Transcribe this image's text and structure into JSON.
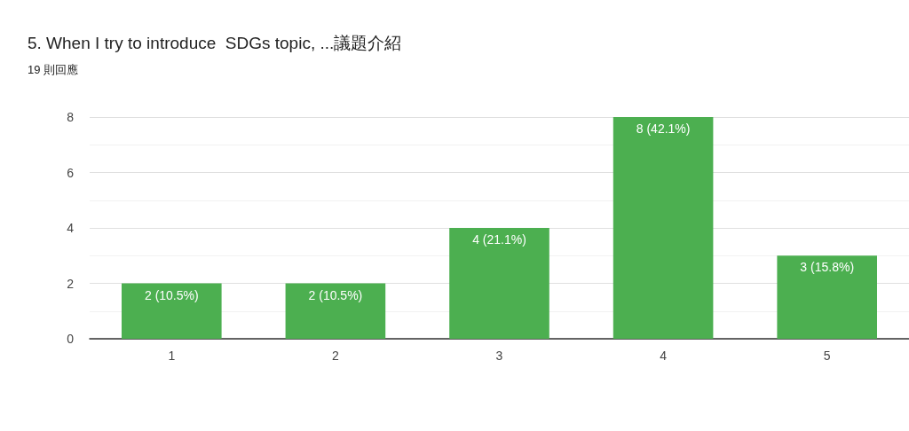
{
  "chart_data": {
    "type": "bar",
    "title": "5. When I try to introduce  SDGs topic, ...議題介紹",
    "subtitle": "19 則回應",
    "categories": [
      "1",
      "2",
      "3",
      "4",
      "5"
    ],
    "values": [
      2,
      2,
      4,
      8,
      3
    ],
    "value_labels": [
      "2 (10.5%)",
      "2 (10.5%)",
      "4 (21.1%)",
      "8 (42.1%)",
      "3 (15.8%)"
    ],
    "color": "#4caf50",
    "ylim": [
      0,
      8
    ],
    "yticks": [
      0,
      2,
      4,
      6,
      8
    ],
    "grid": "y"
  }
}
